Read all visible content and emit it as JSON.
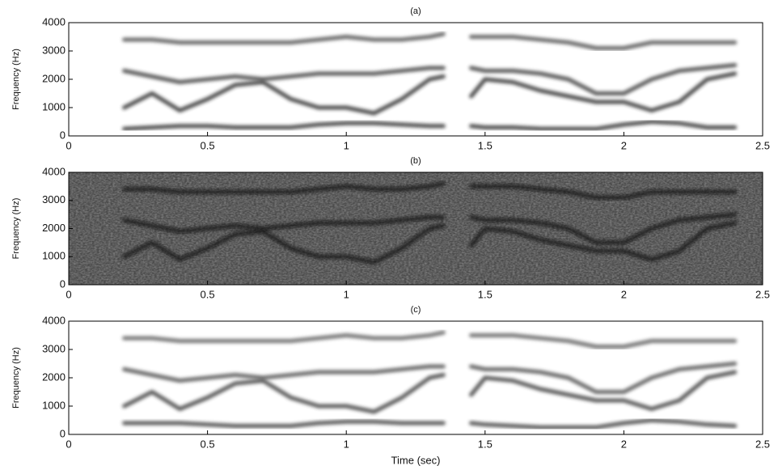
{
  "chart_data": [
    {
      "type": "spectrogram",
      "title": "(a)",
      "ylabel": "Frequency (Hz)",
      "background": "#ffffff",
      "xlim": [
        0,
        2.5
      ],
      "xticks": [
        0,
        0.5,
        1,
        1.5,
        2,
        2.5
      ],
      "ylim": [
        0,
        4000
      ],
      "yticks": [
        0,
        1000,
        2000,
        3000,
        4000
      ],
      "x": [
        0.2,
        0.3,
        0.4,
        0.5,
        0.6,
        0.7,
        0.8,
        0.9,
        1.0,
        1.1,
        1.2,
        1.3,
        1.35,
        1.4,
        1.45,
        1.5,
        1.6,
        1.7,
        1.8,
        1.9,
        2.0,
        2.1,
        2.2,
        2.3,
        2.4
      ],
      "series": [
        {
          "color": "#222222",
          "values": [
            250,
            300,
            350,
            350,
            300,
            300,
            300,
            400,
            450,
            450,
            400,
            350,
            350,
            null,
            350,
            300,
            300,
            250,
            250,
            250,
            400,
            500,
            450,
            300,
            300
          ]
        },
        {
          "color": "#222222",
          "values": [
            1000,
            1500,
            900,
            1300,
            1800,
            1900,
            1300,
            1000,
            1000,
            800,
            1300,
            2000,
            2100,
            null,
            1400,
            2000,
            1900,
            1600,
            1400,
            1200,
            1200,
            900,
            1200,
            2000,
            2200
          ]
        },
        {
          "color": "#333333",
          "values": [
            2300,
            2100,
            1900,
            2000,
            2100,
            2000,
            2100,
            2200,
            2200,
            2200,
            2300,
            2400,
            2400,
            null,
            2400,
            2300,
            2300,
            2200,
            2000,
            1500,
            1500,
            2000,
            2300,
            2400,
            2500
          ]
        },
        {
          "color": "#444444",
          "values": [
            3400,
            3400,
            3300,
            3300,
            3300,
            3300,
            3300,
            3400,
            3500,
            3400,
            3400,
            3500,
            3600,
            null,
            3500,
            3500,
            3500,
            3400,
            3300,
            3100,
            3100,
            3300,
            3300,
            3300,
            3300
          ]
        }
      ]
    },
    {
      "type": "spectrogram",
      "title": "(b)",
      "ylabel": "Frequency (Hz)",
      "background": "#4a4a4a",
      "xlim": [
        0,
        2.5
      ],
      "xticks": [
        0,
        0.5,
        1,
        1.5,
        2,
        2.5
      ],
      "ylim": [
        0,
        4000
      ],
      "yticks": [
        0,
        1000,
        2000,
        3000,
        4000
      ],
      "x": [
        0.2,
        0.3,
        0.4,
        0.5,
        0.6,
        0.7,
        0.8,
        0.9,
        1.0,
        1.1,
        1.2,
        1.3,
        1.35,
        1.4,
        1.45,
        1.5,
        1.6,
        1.7,
        1.8,
        1.9,
        2.0,
        2.1,
        2.2,
        2.3,
        2.4
      ],
      "series": [
        {
          "color": "#111111",
          "values": [
            1000,
            1500,
            900,
            1300,
            1800,
            1900,
            1300,
            1000,
            1000,
            800,
            1300,
            2000,
            2100,
            null,
            1400,
            2000,
            1900,
            1600,
            1400,
            1200,
            1200,
            900,
            1200,
            2000,
            2200
          ]
        },
        {
          "color": "#111111",
          "values": [
            2300,
            2100,
            1900,
            2000,
            2100,
            2000,
            2100,
            2200,
            2200,
            2200,
            2300,
            2400,
            2400,
            null,
            2400,
            2300,
            2300,
            2200,
            2000,
            1500,
            1500,
            2000,
            2300,
            2400,
            2500
          ]
        },
        {
          "color": "#111111",
          "values": [
            3400,
            3400,
            3300,
            3300,
            3300,
            3300,
            3300,
            3400,
            3500,
            3400,
            3400,
            3500,
            3600,
            null,
            3500,
            3500,
            3500,
            3400,
            3300,
            3100,
            3100,
            3300,
            3300,
            3300,
            3300
          ]
        }
      ]
    },
    {
      "type": "spectrogram",
      "title": "(c)",
      "ylabel": "Frequency (Hz)",
      "xlabel": "Time (sec)",
      "background": "#ffffff",
      "xlim": [
        0,
        2.5
      ],
      "xticks": [
        0,
        0.5,
        1,
        1.5,
        2,
        2.5
      ],
      "ylim": [
        0,
        4000
      ],
      "yticks": [
        0,
        1000,
        2000,
        3000,
        4000
      ],
      "x": [
        0.2,
        0.3,
        0.4,
        0.5,
        0.6,
        0.7,
        0.8,
        0.9,
        1.0,
        1.1,
        1.2,
        1.3,
        1.35,
        1.4,
        1.45,
        1.5,
        1.6,
        1.7,
        1.8,
        1.9,
        2.0,
        2.1,
        2.2,
        2.3,
        2.4
      ],
      "series": [
        {
          "color": "#333333",
          "values": [
            400,
            400,
            400,
            350,
            300,
            300,
            300,
            400,
            450,
            450,
            400,
            400,
            400,
            null,
            400,
            350,
            300,
            250,
            250,
            250,
            400,
            500,
            450,
            350,
            300
          ]
        },
        {
          "color": "#333333",
          "values": [
            1000,
            1500,
            900,
            1300,
            1800,
            1900,
            1300,
            1000,
            1000,
            800,
            1300,
            2000,
            2100,
            null,
            1400,
            2000,
            1900,
            1600,
            1400,
            1200,
            1200,
            900,
            1200,
            2000,
            2200
          ]
        },
        {
          "color": "#444444",
          "values": [
            2300,
            2100,
            1900,
            2000,
            2100,
            2000,
            2100,
            2200,
            2200,
            2200,
            2300,
            2400,
            2400,
            null,
            2400,
            2300,
            2300,
            2200,
            2000,
            1500,
            1500,
            2000,
            2300,
            2400,
            2500
          ]
        },
        {
          "color": "#555555",
          "values": [
            3400,
            3400,
            3300,
            3300,
            3300,
            3300,
            3300,
            3400,
            3500,
            3400,
            3400,
            3500,
            3600,
            null,
            3500,
            3500,
            3500,
            3400,
            3300,
            3100,
            3100,
            3300,
            3300,
            3300,
            3300
          ]
        }
      ]
    }
  ]
}
